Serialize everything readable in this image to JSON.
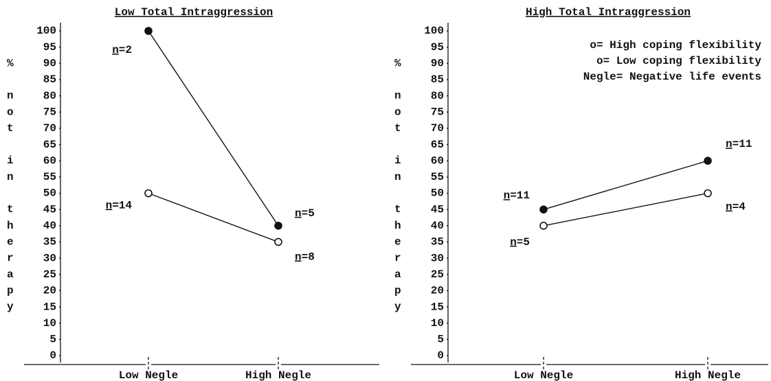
{
  "chart_data": [
    {
      "type": "line",
      "title": "Low Total Intraggression",
      "ylabel": "% not in therapy",
      "categories": [
        "Low Negle",
        "High Negle"
      ],
      "series": [
        {
          "marker": "filled",
          "color": "#111111",
          "values": [
            100,
            40
          ],
          "point_labels": [
            "n=2",
            "n=5"
          ]
        },
        {
          "marker": "open",
          "color": "#111111",
          "values": [
            50,
            35
          ],
          "point_labels": [
            "n=14",
            "n=8"
          ]
        }
      ],
      "ylim": [
        0,
        100
      ],
      "yticks": [
        0,
        5,
        10,
        15,
        20,
        25,
        30,
        35,
        40,
        45,
        50,
        55,
        60,
        65,
        70,
        75,
        80,
        85,
        90,
        95,
        100
      ]
    },
    {
      "type": "line",
      "title": "High Total Intraggression",
      "ylabel": "% not in therapy",
      "categories": [
        "Low Negle",
        "High Negle"
      ],
      "series": [
        {
          "name": "o= High coping flexibility",
          "marker": "filled",
          "color": "#111111",
          "values": [
            45,
            60
          ],
          "point_labels": [
            "n=11",
            "n=11"
          ]
        },
        {
          "name": "o= Low coping flexibility",
          "marker": "open",
          "color": "#111111",
          "values": [
            40,
            50
          ],
          "point_labels": [
            "n=5",
            "n=4"
          ]
        }
      ],
      "note": "Negle= Negative life events",
      "ylim": [
        0,
        100
      ],
      "yticks": [
        0,
        5,
        10,
        15,
        20,
        25,
        30,
        35,
        40,
        45,
        50,
        55,
        60,
        65,
        70,
        75,
        80,
        85,
        90,
        95,
        100
      ]
    }
  ]
}
